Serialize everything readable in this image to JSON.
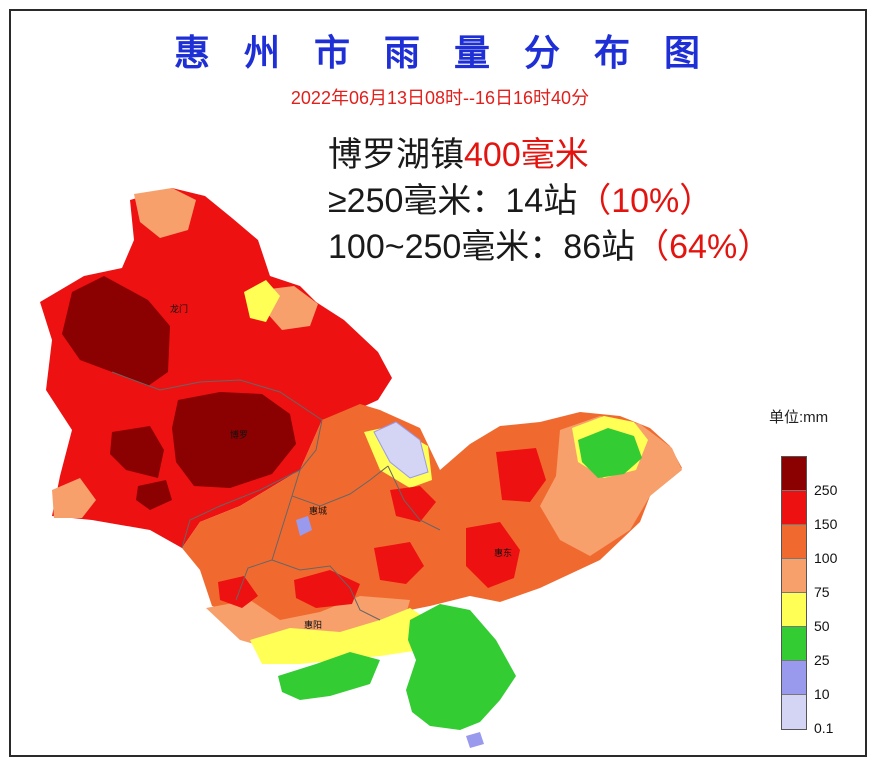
{
  "header": {
    "title": "惠州市雨量分布图",
    "subtitle": "2022年06月13日08时--16日16时40分"
  },
  "stats": {
    "max_station": "博罗湖镇",
    "max_value": "400毫米",
    "line2_prefix": "≥250毫米：14站",
    "line2_pct": "（10%）",
    "line3_prefix": "100~250毫米：86站",
    "line3_pct": "（64%）"
  },
  "places": {
    "longmen": "龙门",
    "boluo": "博罗",
    "huicheng": "惠城",
    "huidong": "惠东",
    "huiyang": "惠阳"
  },
  "legend": {
    "unit": "单位:mm",
    "classes": [
      {
        "label": "250",
        "color": "#8b0000"
      },
      {
        "label": "150",
        "color": "#ee1111"
      },
      {
        "label": "100",
        "color": "#f06a30"
      },
      {
        "label": "75",
        "color": "#f7a06c"
      },
      {
        "label": "50",
        "color": "#ffff55"
      },
      {
        "label": "25",
        "color": "#33cc33"
      },
      {
        "label": "10",
        "color": "#9999ee"
      },
      {
        "label": "0.1",
        "color": "#d4d4f4"
      }
    ]
  }
}
